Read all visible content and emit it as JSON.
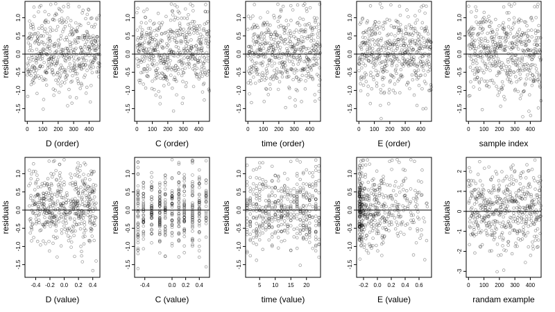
{
  "figure": {
    "background": "#ffffff",
    "point_color": "#000000"
  },
  "chart_data": [
    {
      "type": "scatter",
      "title": "",
      "xlabel": "D (order)",
      "ylabel": "residuals",
      "xlim": [
        -15,
        470
      ],
      "ylim": [
        -1.85,
        1.45
      ],
      "xticks": [
        0,
        100,
        200,
        300,
        400
      ],
      "yticks": [
        -1.5,
        -1.0,
        -0.5,
        0.0,
        0.5,
        1.0
      ],
      "hline": 0,
      "gen": {
        "n": 470,
        "xmode": "order",
        "xmax": 470,
        "sd": 0.55,
        "seed": 11
      }
    },
    {
      "type": "scatter",
      "title": "",
      "xlabel": "C (order)",
      "ylabel": "residuals",
      "xlim": [
        -15,
        470
      ],
      "ylim": [
        -1.85,
        1.45
      ],
      "xticks": [
        0,
        100,
        200,
        300,
        400
      ],
      "yticks": [
        -1.5,
        -1.0,
        -0.5,
        0.0,
        0.5,
        1.0
      ],
      "hline": 0,
      "gen": {
        "n": 470,
        "xmode": "order",
        "xmax": 470,
        "sd": 0.55,
        "seed": 23
      }
    },
    {
      "type": "scatter",
      "title": "",
      "xlabel": "time (order)",
      "ylabel": "residuals",
      "xlim": [
        -15,
        470
      ],
      "ylim": [
        -1.85,
        1.45
      ],
      "xticks": [
        0,
        100,
        200,
        300,
        400
      ],
      "yticks": [
        -1.5,
        -1.0,
        -0.5,
        0.0,
        0.5,
        1.0
      ],
      "hline": 0,
      "gen": {
        "n": 470,
        "xmode": "order",
        "xmax": 470,
        "sd": 0.55,
        "seed": 37
      }
    },
    {
      "type": "scatter",
      "title": "",
      "xlabel": "E (order)",
      "ylabel": "residuals",
      "xlim": [
        -15,
        470
      ],
      "ylim": [
        -1.85,
        1.45
      ],
      "xticks": [
        0,
        100,
        200,
        300,
        400
      ],
      "yticks": [
        -1.5,
        -1.0,
        -0.5,
        0.0,
        0.5,
        1.0
      ],
      "hline": 0,
      "gen": {
        "n": 470,
        "xmode": "order",
        "xmax": 470,
        "sd": 0.55,
        "seed": 41
      }
    },
    {
      "type": "scatter",
      "title": "",
      "xlabel": "sample index",
      "ylabel": "residuals",
      "xlim": [
        -15,
        470
      ],
      "ylim": [
        -1.85,
        1.45
      ],
      "xticks": [
        0,
        100,
        200,
        300,
        400
      ],
      "yticks": [
        -1.5,
        -1.0,
        -0.5,
        0.0,
        0.5,
        1.0
      ],
      "hline": 0,
      "gen": {
        "n": 470,
        "xmode": "order",
        "xmax": 470,
        "sd": 0.55,
        "seed": 53
      }
    },
    {
      "type": "scatter",
      "title": "",
      "xlabel": "D (value)",
      "ylabel": "residuals",
      "xlim": [
        -0.55,
        0.5
      ],
      "ylim": [
        -1.85,
        1.45
      ],
      "xticks": [
        -0.4,
        -0.2,
        0.0,
        0.2,
        0.4
      ],
      "yticks": [
        -1.5,
        -1.0,
        -0.5,
        0.0,
        0.5,
        1.0
      ],
      "hline": 0,
      "gen": {
        "n": 470,
        "xmode": "uniform",
        "xmin": -0.5,
        "xmax": 0.45,
        "sd": 0.55,
        "seed": 61
      }
    },
    {
      "type": "scatter",
      "title": "",
      "xlabel": "C (value)",
      "ylabel": "residuals",
      "xlim": [
        -0.55,
        0.55
      ],
      "ylim": [
        -1.85,
        1.45
      ],
      "xticks": [
        -0.4,
        0.0,
        0.2,
        0.4
      ],
      "yticks": [
        -1.5,
        -1.0,
        -0.5,
        0.0,
        0.5,
        1.0
      ],
      "hline": 0,
      "gen": {
        "n": 470,
        "xmode": "levels",
        "levels": [
          -0.5,
          -0.42,
          -0.3,
          -0.18,
          -0.1,
          0.0,
          0.1,
          0.18,
          0.3,
          0.4,
          0.5
        ],
        "sd": 0.55,
        "seed": 71
      }
    },
    {
      "type": "scatter",
      "title": "",
      "xlabel": "time (value)",
      "ylabel": "residuals",
      "xlim": [
        0.5,
        24.5
      ],
      "ylim": [
        -1.85,
        1.45
      ],
      "xticks": [
        5,
        10,
        15,
        20
      ],
      "yticks": [
        -1.5,
        -1.0,
        -0.5,
        0.0,
        0.5,
        1.0
      ],
      "hline": 0,
      "gen": {
        "n": 470,
        "xmode": "levels",
        "levels": [
          1,
          2,
          3,
          4,
          5,
          6,
          7,
          8,
          9,
          10,
          11,
          12,
          13,
          14,
          15,
          16,
          17,
          18,
          19,
          20,
          21,
          22,
          23,
          24
        ],
        "sd": 0.55,
        "seed": 83
      }
    },
    {
      "type": "scatter",
      "title": "",
      "xlabel": "E (value)",
      "ylabel": "residuals",
      "xlim": [
        -0.3,
        0.78
      ],
      "ylim": [
        -1.85,
        1.45
      ],
      "xticks": [
        -0.2,
        0.0,
        0.2,
        0.4,
        0.6
      ],
      "yticks": [
        -1.5,
        -1.0,
        -0.5,
        0.0,
        0.5,
        1.0
      ],
      "hline": 0,
      "gen": {
        "n": 470,
        "xmode": "skew",
        "xmin": -0.26,
        "xmax": 0.72,
        "sd": 0.55,
        "seed": 97
      }
    },
    {
      "type": "scatter",
      "title": "",
      "xlabel": "randam example",
      "ylabel": "residuals",
      "xlim": [
        -15,
        470
      ],
      "ylim": [
        -3.3,
        2.7
      ],
      "xticks": [
        0,
        100,
        200,
        300,
        400
      ],
      "yticks": [
        -3,
        -2,
        -1,
        0,
        1,
        2
      ],
      "hline": 0,
      "gen": {
        "n": 470,
        "xmode": "order",
        "xmax": 470,
        "sd": 1.0,
        "seed": 103
      }
    }
  ]
}
